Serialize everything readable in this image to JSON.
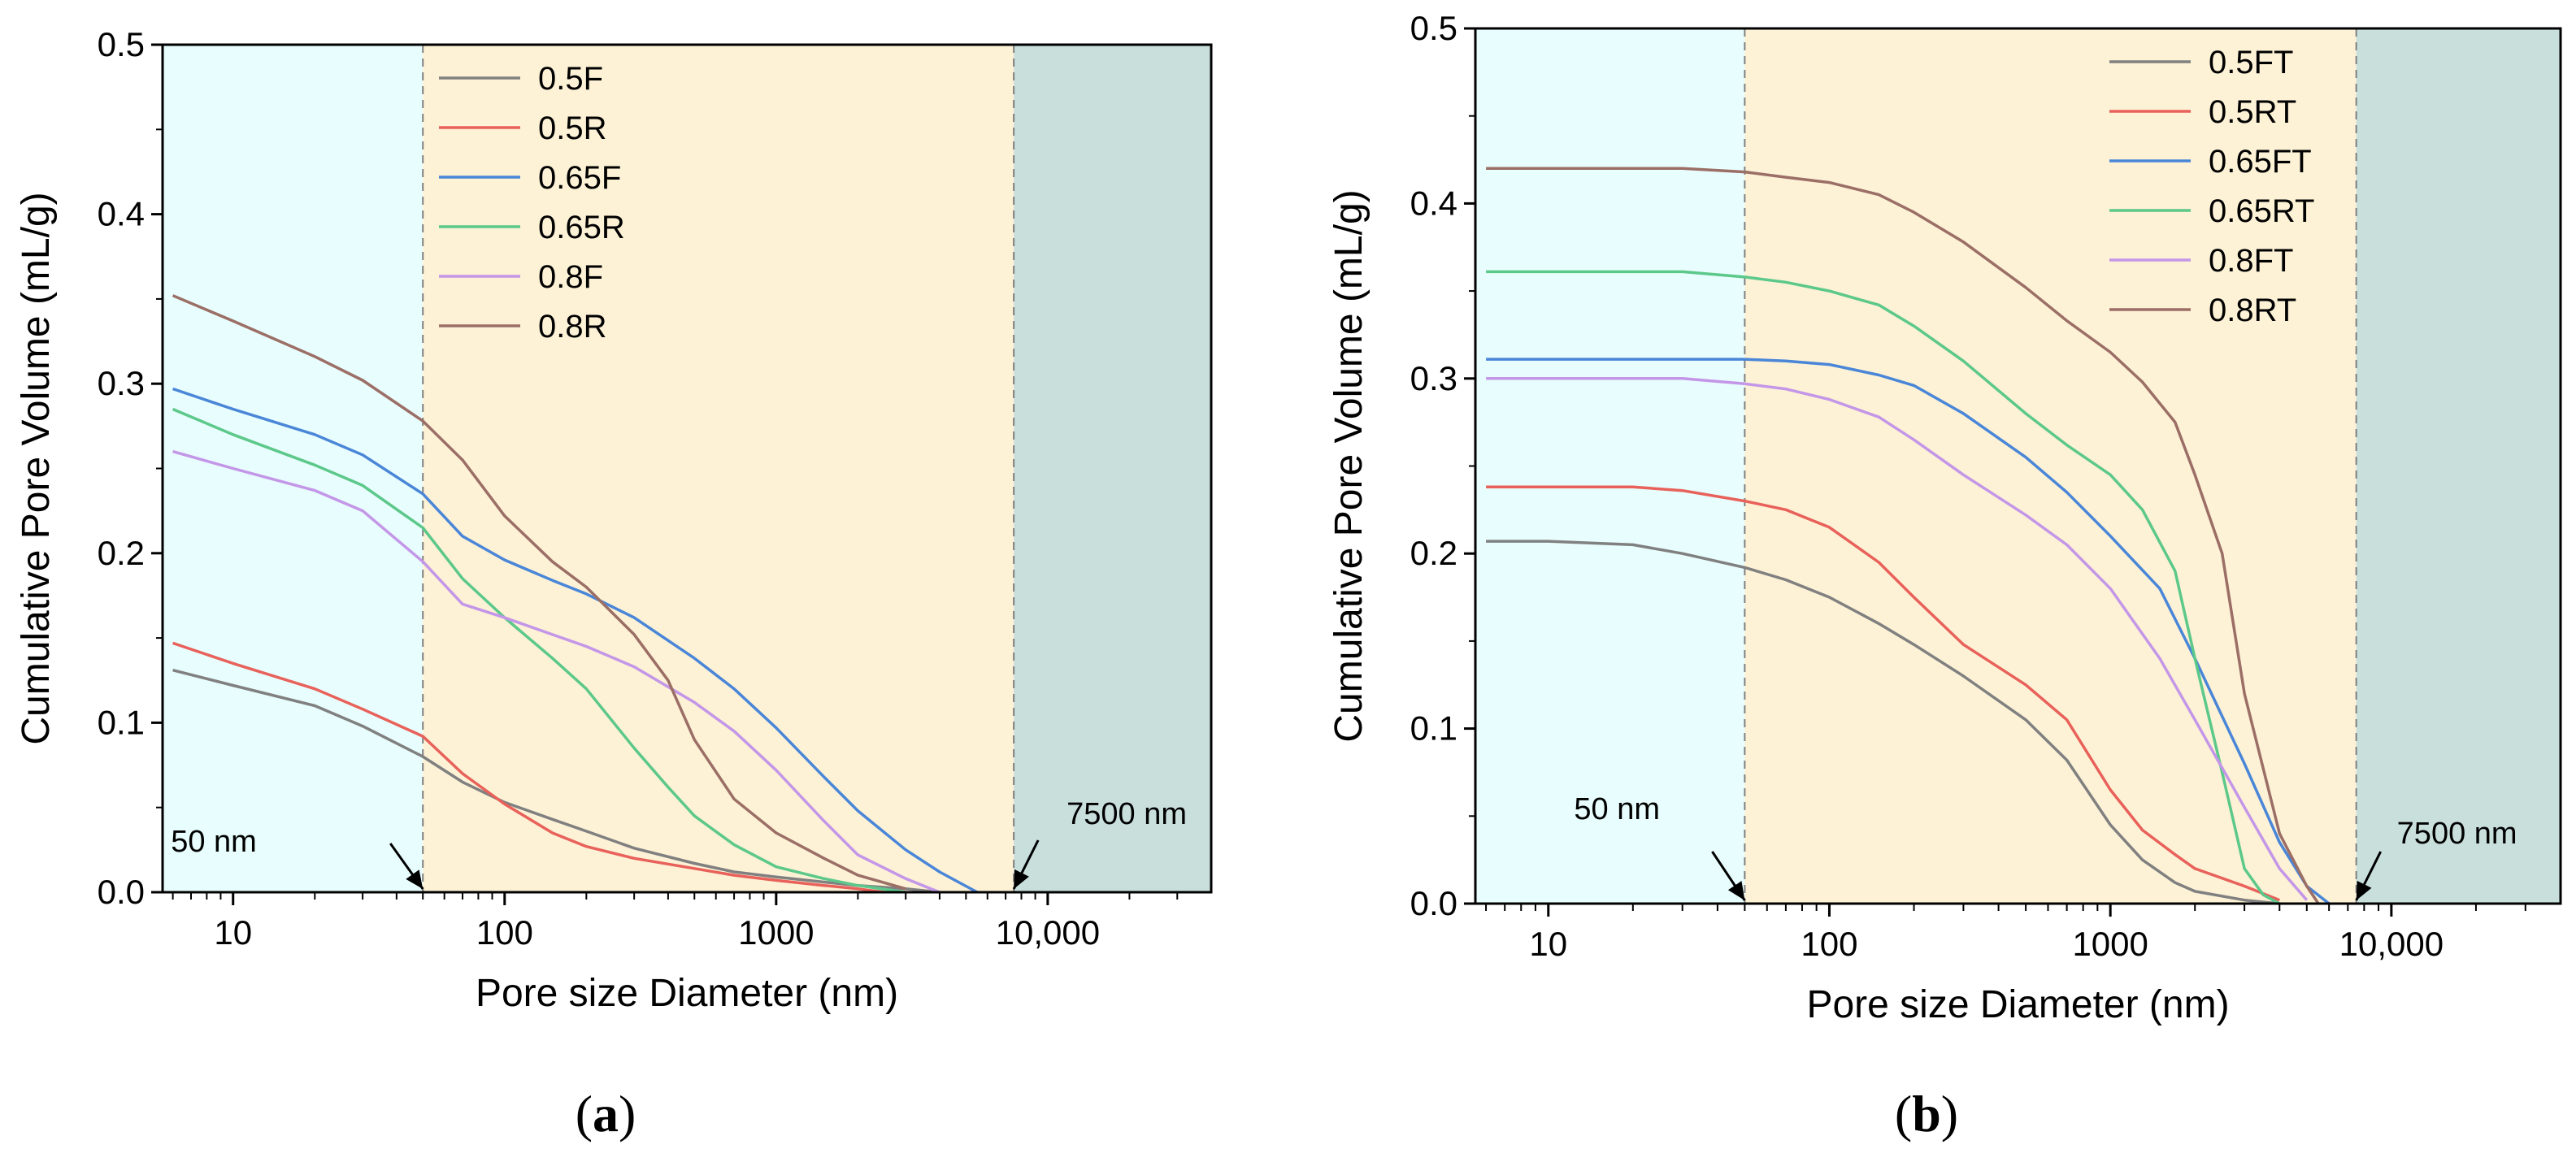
{
  "chart_data": [
    {
      "type": "line",
      "panel_label": "a",
      "xlabel": "Pore size Diameter (nm)",
      "ylabel": "Cumulative Pore Volume (mL/g)",
      "xscale": "log",
      "xlim": [
        5.5,
        40000
      ],
      "ylim": [
        0,
        0.5
      ],
      "xticks": [
        {
          "value": 10,
          "label": "10"
        },
        {
          "value": 100,
          "label": "100"
        },
        {
          "value": 1000,
          "label": "1000"
        },
        {
          "value": 10000,
          "label": "10,000"
        }
      ],
      "yticks": [
        {
          "value": 0.0,
          "label": "0.0"
        },
        {
          "value": 0.1,
          "label": "0.1"
        },
        {
          "value": 0.2,
          "label": "0.2"
        },
        {
          "value": 0.3,
          "label": "0.3"
        },
        {
          "value": 0.4,
          "label": "0.4"
        },
        {
          "value": 0.5,
          "label": "0.5"
        }
      ],
      "regions": [
        {
          "from": 5.5,
          "to": 50,
          "color": "#e8fdfd"
        },
        {
          "from": 50,
          "to": 7500,
          "color": "#fdf2d6"
        },
        {
          "from": 7500,
          "to": 40000,
          "color": "#c9dfdc"
        }
      ],
      "boundaries": [
        50,
        7500
      ],
      "annotations": [
        {
          "text": "50 nm",
          "x": 50,
          "y": 0.0
        },
        {
          "text": "7500 nm",
          "x": 7500,
          "y": 0.0
        }
      ],
      "legend_position": "top-center",
      "series": [
        {
          "name": "0.5F",
          "color": "#808080",
          "x": [
            6,
            10,
            20,
            30,
            50,
            70,
            100,
            150,
            200,
            300,
            500,
            700,
            1000,
            1500,
            2000,
            3000,
            4000
          ],
          "y": [
            0.131,
            0.122,
            0.11,
            0.098,
            0.08,
            0.065,
            0.053,
            0.043,
            0.036,
            0.026,
            0.017,
            0.012,
            0.009,
            0.006,
            0.004,
            0.002,
            0.0
          ]
        },
        {
          "name": "0.5R",
          "color": "#e8615a",
          "x": [
            6,
            10,
            20,
            30,
            50,
            70,
            100,
            150,
            200,
            300,
            500,
            700,
            1000,
            1500,
            2000,
            2500
          ],
          "y": [
            0.147,
            0.135,
            0.12,
            0.108,
            0.092,
            0.07,
            0.052,
            0.035,
            0.027,
            0.02,
            0.014,
            0.01,
            0.007,
            0.004,
            0.002,
            0.0
          ]
        },
        {
          "name": "0.65F",
          "color": "#4a86d8",
          "x": [
            6,
            10,
            20,
            30,
            50,
            70,
            100,
            150,
            200,
            300,
            500,
            700,
            1000,
            1500,
            2000,
            3000,
            4000,
            5500
          ],
          "y": [
            0.297,
            0.285,
            0.27,
            0.258,
            0.235,
            0.21,
            0.196,
            0.184,
            0.176,
            0.162,
            0.138,
            0.12,
            0.097,
            0.068,
            0.048,
            0.025,
            0.012,
            0.0
          ]
        },
        {
          "name": "0.65R",
          "color": "#5cc88a",
          "x": [
            6,
            10,
            20,
            30,
            50,
            70,
            100,
            150,
            200,
            300,
            400,
            500,
            700,
            1000,
            1500,
            2000,
            3000
          ],
          "y": [
            0.285,
            0.27,
            0.252,
            0.24,
            0.215,
            0.185,
            0.162,
            0.138,
            0.12,
            0.085,
            0.062,
            0.045,
            0.028,
            0.015,
            0.008,
            0.004,
            0.0
          ]
        },
        {
          "name": "0.8F",
          "color": "#c496e8",
          "x": [
            6,
            10,
            20,
            30,
            50,
            70,
            100,
            150,
            200,
            300,
            500,
            700,
            1000,
            1500,
            2000,
            3000,
            4000
          ],
          "y": [
            0.26,
            0.25,
            0.237,
            0.225,
            0.195,
            0.17,
            0.162,
            0.152,
            0.145,
            0.133,
            0.112,
            0.095,
            0.072,
            0.042,
            0.022,
            0.008,
            0.0
          ]
        },
        {
          "name": "0.8R",
          "color": "#9b6e66",
          "x": [
            6,
            10,
            20,
            30,
            50,
            70,
            100,
            150,
            200,
            300,
            400,
            500,
            700,
            1000,
            1500,
            2000,
            3000
          ],
          "y": [
            0.352,
            0.337,
            0.316,
            0.302,
            0.278,
            0.255,
            0.222,
            0.195,
            0.18,
            0.152,
            0.125,
            0.09,
            0.055,
            0.035,
            0.02,
            0.01,
            0.002
          ]
        }
      ]
    },
    {
      "type": "line",
      "panel_label": "b",
      "xlabel": "Pore size Diameter (nm)",
      "ylabel": "Cumulative Pore Volume (mL/g)",
      "xscale": "log",
      "xlim": [
        5.5,
        40000
      ],
      "ylim": [
        0,
        0.5
      ],
      "xticks": [
        {
          "value": 10,
          "label": "10"
        },
        {
          "value": 100,
          "label": "100"
        },
        {
          "value": 1000,
          "label": "1000"
        },
        {
          "value": 10000,
          "label": "10,000"
        }
      ],
      "yticks": [
        {
          "value": 0.0,
          "label": "0.0"
        },
        {
          "value": 0.1,
          "label": "0.1"
        },
        {
          "value": 0.2,
          "label": "0.2"
        },
        {
          "value": 0.3,
          "label": "0.3"
        },
        {
          "value": 0.4,
          "label": "0.4"
        },
        {
          "value": 0.5,
          "label": "0.5"
        }
      ],
      "regions": [
        {
          "from": 5.5,
          "to": 50,
          "color": "#e8fdfd"
        },
        {
          "from": 50,
          "to": 7500,
          "color": "#fdf2d6"
        },
        {
          "from": 7500,
          "to": 40000,
          "color": "#c9dfdc"
        }
      ],
      "boundaries": [
        50,
        7500
      ],
      "annotations": [
        {
          "text": "50 nm",
          "x": 50,
          "y": 0.0
        },
        {
          "text": "7500 nm",
          "x": 7500,
          "y": 0.0
        }
      ],
      "legend_position": "top-right",
      "series": [
        {
          "name": "0.5FT",
          "color": "#808080",
          "x": [
            6,
            10,
            20,
            30,
            50,
            70,
            100,
            150,
            200,
            300,
            500,
            700,
            1000,
            1300,
            1700,
            2000,
            3000,
            4000
          ],
          "y": [
            0.207,
            0.207,
            0.205,
            0.2,
            0.192,
            0.185,
            0.175,
            0.16,
            0.148,
            0.13,
            0.105,
            0.082,
            0.045,
            0.025,
            0.012,
            0.007,
            0.002,
            0.0
          ]
        },
        {
          "name": "0.5RT",
          "color": "#e8615a",
          "x": [
            6,
            10,
            20,
            30,
            50,
            70,
            100,
            150,
            200,
            300,
            500,
            700,
            1000,
            1300,
            1700,
            2000,
            3000,
            4000
          ],
          "y": [
            0.238,
            0.238,
            0.238,
            0.236,
            0.23,
            0.225,
            0.215,
            0.195,
            0.175,
            0.148,
            0.125,
            0.105,
            0.065,
            0.042,
            0.028,
            0.02,
            0.01,
            0.002
          ]
        },
        {
          "name": "0.65FT",
          "color": "#4a86d8",
          "x": [
            6,
            10,
            20,
            30,
            50,
            70,
            100,
            150,
            200,
            300,
            500,
            700,
            1000,
            1500,
            2000,
            3000,
            4000,
            5000,
            6000
          ],
          "y": [
            0.311,
            0.311,
            0.311,
            0.311,
            0.311,
            0.31,
            0.308,
            0.302,
            0.296,
            0.28,
            0.255,
            0.235,
            0.21,
            0.18,
            0.14,
            0.08,
            0.035,
            0.01,
            0.0
          ]
        },
        {
          "name": "0.65RT",
          "color": "#5cc88a",
          "x": [
            6,
            10,
            20,
            30,
            50,
            70,
            100,
            150,
            200,
            300,
            500,
            700,
            1000,
            1300,
            1700,
            2000,
            2500,
            3000,
            3500,
            4000
          ],
          "y": [
            0.361,
            0.361,
            0.361,
            0.361,
            0.358,
            0.355,
            0.35,
            0.342,
            0.33,
            0.31,
            0.28,
            0.262,
            0.245,
            0.225,
            0.19,
            0.14,
            0.075,
            0.02,
            0.005,
            0.0
          ]
        },
        {
          "name": "0.8FT",
          "color": "#c496e8",
          "x": [
            6,
            10,
            20,
            30,
            50,
            70,
            100,
            150,
            200,
            300,
            500,
            700,
            1000,
            1500,
            2000,
            3000,
            4000,
            5000
          ],
          "y": [
            0.3,
            0.3,
            0.3,
            0.3,
            0.297,
            0.294,
            0.288,
            0.278,
            0.265,
            0.245,
            0.222,
            0.205,
            0.18,
            0.14,
            0.105,
            0.055,
            0.02,
            0.002
          ]
        },
        {
          "name": "0.8RT",
          "color": "#9b6e66",
          "x": [
            6,
            10,
            20,
            30,
            50,
            70,
            100,
            150,
            200,
            300,
            500,
            700,
            1000,
            1300,
            1700,
            2000,
            2500,
            3000,
            4000,
            5000,
            5500
          ],
          "y": [
            0.42,
            0.42,
            0.42,
            0.42,
            0.418,
            0.415,
            0.412,
            0.405,
            0.395,
            0.378,
            0.352,
            0.333,
            0.315,
            0.298,
            0.275,
            0.245,
            0.2,
            0.12,
            0.04,
            0.01,
            0.0
          ]
        }
      ]
    }
  ]
}
